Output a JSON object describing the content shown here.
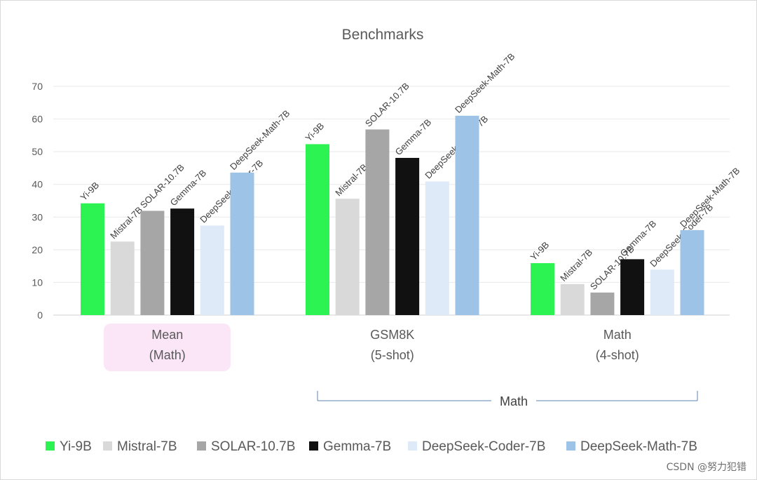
{
  "chart_data": {
    "type": "bar",
    "title": "Benchmarks",
    "ylim": [
      0,
      70
    ],
    "yticks": [
      0,
      10,
      20,
      30,
      40,
      50,
      60,
      70
    ],
    "grid": true,
    "legend_position": "bottom",
    "series": [
      {
        "name": "Yi-9B",
        "color": "#2cf252",
        "values": [
          34.2,
          52.3,
          15.9
        ]
      },
      {
        "name": "Mistral-7B",
        "color": "#d9d9d9",
        "values": [
          22.5,
          35.6,
          9.5
        ]
      },
      {
        "name": "SOLAR-10.7B",
        "color": "#a6a6a6",
        "values": [
          31.9,
          56.8,
          6.9
        ]
      },
      {
        "name": "Gemma-7B",
        "color": "#111111",
        "values": [
          32.6,
          48.1,
          17.1
        ]
      },
      {
        "name": "DeepSeek-Coder-7B",
        "color": "#deeaf7",
        "values": [
          27.4,
          40.9,
          13.9
        ]
      },
      {
        "name": "DeepSeek-Math-7B",
        "color": "#9dc3e6",
        "values": [
          43.6,
          61.0,
          26.0
        ]
      }
    ],
    "categories": [
      {
        "line1": "Mean",
        "line2": "(Math)",
        "highlighted": true
      },
      {
        "line1": "GSM8K",
        "line2": "(5-shot)",
        "highlighted": false
      },
      {
        "line1": "Math",
        "line2": "(4-shot)",
        "highlighted": false
      }
    ],
    "group_bracket": {
      "label": "Math",
      "spans": [
        "GSM8K",
        "Math"
      ]
    },
    "colors": {
      "highlight_box": "#fbe6f8",
      "bracket": "#5b83b3",
      "grid": "#e8e8e8",
      "text": "#595959"
    }
  },
  "watermark": "CSDN @努力犯错"
}
